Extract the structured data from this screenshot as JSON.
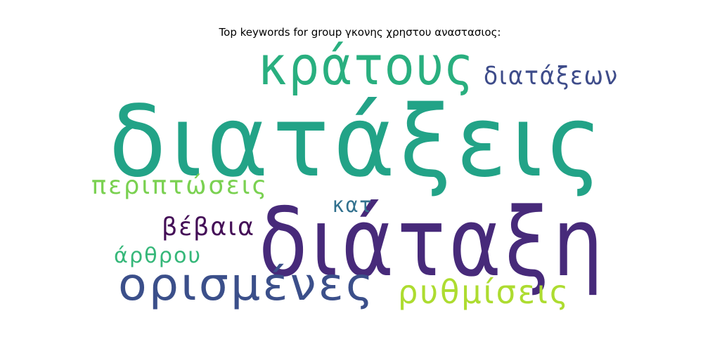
{
  "title": "Top keywords for group γκονης χρηστου αναστασιος:",
  "words": [
    {
      "text": "διατάξεις",
      "color": "#22a387"
    },
    {
      "text": "διάταξη",
      "color": "#472a7a"
    },
    {
      "text": "κράτους",
      "color": "#29af7f"
    },
    {
      "text": "ορισμένες",
      "color": "#3b4f8a"
    },
    {
      "text": "διατάξεων",
      "color": "#3e4c8a"
    },
    {
      "text": "περιπτώσεις",
      "color": "#7ad151"
    },
    {
      "text": "ρυθμίσεις",
      "color": "#addc30"
    },
    {
      "text": "βέβαια",
      "color": "#440f57"
    },
    {
      "text": "άρθρου",
      "color": "#35b779"
    },
    {
      "text": "κατ",
      "color": "#32718e"
    }
  ]
}
